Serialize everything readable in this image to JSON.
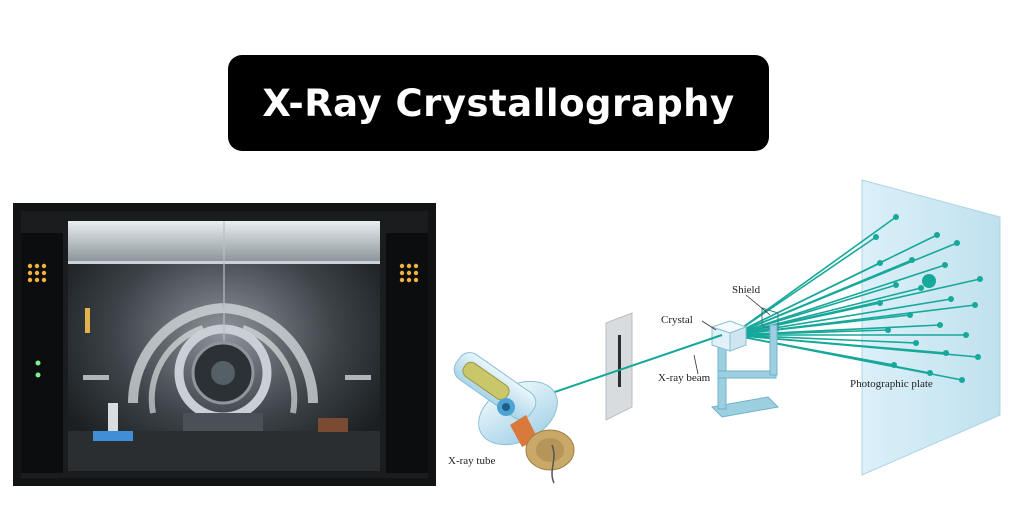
{
  "title": "X-Ray Crystallography",
  "photo": {
    "icon": "xray-diffractometer-photo"
  },
  "diagram": {
    "labels": {
      "shield": "Shield",
      "crystal": "Crystal",
      "xray_beam": "X-ray beam",
      "photographic_plate": "Photographic plate",
      "xray_tube": "X-ray tube"
    },
    "colors": {
      "beam": "#16a89a",
      "plate": "#bfe3f1",
      "stand": "#9ccfe0",
      "tube": "#d8eef8"
    }
  }
}
